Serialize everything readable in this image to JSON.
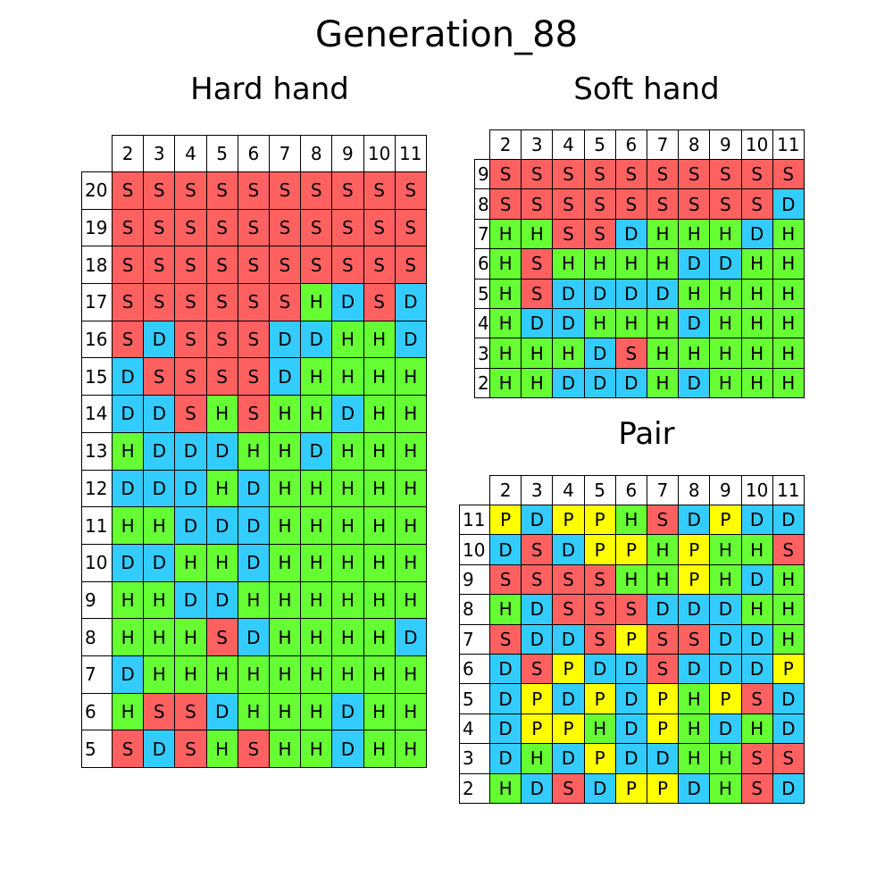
{
  "title": "Generation_88",
  "colors": {
    "S": "#ff6161",
    "H": "#66ff33",
    "D": "#33ccff",
    "P": "#ffff00"
  },
  "chart_data": [
    {
      "type": "table",
      "title": "Hard hand",
      "columns": [
        "2",
        "3",
        "4",
        "5",
        "6",
        "7",
        "8",
        "9",
        "10",
        "11"
      ],
      "rows": [
        {
          "label": "20",
          "cells": [
            "S",
            "S",
            "S",
            "S",
            "S",
            "S",
            "S",
            "S",
            "S",
            "S"
          ]
        },
        {
          "label": "19",
          "cells": [
            "S",
            "S",
            "S",
            "S",
            "S",
            "S",
            "S",
            "S",
            "S",
            "S"
          ]
        },
        {
          "label": "18",
          "cells": [
            "S",
            "S",
            "S",
            "S",
            "S",
            "S",
            "S",
            "S",
            "S",
            "S"
          ]
        },
        {
          "label": "17",
          "cells": [
            "S",
            "S",
            "S",
            "S",
            "S",
            "S",
            "H",
            "D",
            "S",
            "D"
          ]
        },
        {
          "label": "16",
          "cells": [
            "S",
            "D",
            "S",
            "S",
            "S",
            "D",
            "D",
            "H",
            "H",
            "D"
          ]
        },
        {
          "label": "15",
          "cells": [
            "D",
            "S",
            "S",
            "S",
            "S",
            "D",
            "H",
            "H",
            "H",
            "H"
          ]
        },
        {
          "label": "14",
          "cells": [
            "D",
            "D",
            "S",
            "H",
            "S",
            "H",
            "H",
            "D",
            "H",
            "H"
          ]
        },
        {
          "label": "13",
          "cells": [
            "H",
            "D",
            "D",
            "D",
            "H",
            "H",
            "D",
            "H",
            "H",
            "H"
          ]
        },
        {
          "label": "12",
          "cells": [
            "D",
            "D",
            "D",
            "H",
            "D",
            "H",
            "H",
            "H",
            "H",
            "H"
          ]
        },
        {
          "label": "11",
          "cells": [
            "H",
            "H",
            "D",
            "D",
            "D",
            "H",
            "H",
            "H",
            "H",
            "H"
          ]
        },
        {
          "label": "10",
          "cells": [
            "D",
            "D",
            "H",
            "H",
            "D",
            "H",
            "H",
            "H",
            "H",
            "H"
          ]
        },
        {
          "label": "9",
          "cells": [
            "H",
            "H",
            "D",
            "D",
            "H",
            "H",
            "H",
            "H",
            "H",
            "H"
          ]
        },
        {
          "label": "8",
          "cells": [
            "H",
            "H",
            "H",
            "S",
            "D",
            "H",
            "H",
            "H",
            "H",
            "D"
          ]
        },
        {
          "label": "7",
          "cells": [
            "D",
            "H",
            "H",
            "H",
            "H",
            "H",
            "H",
            "H",
            "H",
            "H"
          ]
        },
        {
          "label": "6",
          "cells": [
            "H",
            "S",
            "S",
            "D",
            "H",
            "H",
            "H",
            "D",
            "H",
            "H"
          ]
        },
        {
          "label": "5",
          "cells": [
            "S",
            "D",
            "S",
            "H",
            "S",
            "H",
            "H",
            "D",
            "H",
            "H"
          ]
        }
      ]
    },
    {
      "type": "table",
      "title": "Soft hand",
      "columns": [
        "2",
        "3",
        "4",
        "5",
        "6",
        "7",
        "8",
        "9",
        "10",
        "11"
      ],
      "rows": [
        {
          "label": "9",
          "cells": [
            "S",
            "S",
            "S",
            "S",
            "S",
            "S",
            "S",
            "S",
            "S",
            "S"
          ]
        },
        {
          "label": "8",
          "cells": [
            "S",
            "S",
            "S",
            "S",
            "S",
            "S",
            "S",
            "S",
            "S",
            "D"
          ]
        },
        {
          "label": "7",
          "cells": [
            "H",
            "H",
            "S",
            "S",
            "D",
            "H",
            "H",
            "H",
            "D",
            "H"
          ]
        },
        {
          "label": "6",
          "cells": [
            "H",
            "S",
            "H",
            "H",
            "H",
            "H",
            "D",
            "D",
            "H",
            "H"
          ]
        },
        {
          "label": "5",
          "cells": [
            "H",
            "S",
            "D",
            "D",
            "D",
            "D",
            "H",
            "H",
            "H",
            "H"
          ]
        },
        {
          "label": "4",
          "cells": [
            "H",
            "D",
            "D",
            "H",
            "H",
            "H",
            "D",
            "H",
            "H",
            "H"
          ]
        },
        {
          "label": "3",
          "cells": [
            "H",
            "H",
            "H",
            "D",
            "S",
            "H",
            "H",
            "H",
            "H",
            "H"
          ]
        },
        {
          "label": "2",
          "cells": [
            "H",
            "H",
            "D",
            "D",
            "D",
            "H",
            "D",
            "H",
            "H",
            "H"
          ]
        }
      ]
    },
    {
      "type": "table",
      "title": "Pair",
      "columns": [
        "2",
        "3",
        "4",
        "5",
        "6",
        "7",
        "8",
        "9",
        "10",
        "11"
      ],
      "rows": [
        {
          "label": "11",
          "cells": [
            "P",
            "D",
            "P",
            "P",
            "H",
            "S",
            "D",
            "P",
            "D",
            "D"
          ]
        },
        {
          "label": "10",
          "cells": [
            "D",
            "S",
            "D",
            "P",
            "P",
            "H",
            "P",
            "H",
            "H",
            "S"
          ]
        },
        {
          "label": "9",
          "cells": [
            "S",
            "S",
            "S",
            "S",
            "H",
            "H",
            "P",
            "H",
            "D",
            "H"
          ]
        },
        {
          "label": "8",
          "cells": [
            "H",
            "D",
            "S",
            "S",
            "S",
            "D",
            "D",
            "D",
            "H",
            "H"
          ]
        },
        {
          "label": "7",
          "cells": [
            "S",
            "D",
            "D",
            "S",
            "P",
            "S",
            "S",
            "D",
            "D",
            "H"
          ]
        },
        {
          "label": "6",
          "cells": [
            "D",
            "S",
            "P",
            "D",
            "D",
            "S",
            "D",
            "D",
            "D",
            "P"
          ]
        },
        {
          "label": "5",
          "cells": [
            "D",
            "P",
            "D",
            "P",
            "D",
            "P",
            "H",
            "P",
            "S",
            "D"
          ]
        },
        {
          "label": "4",
          "cells": [
            "D",
            "P",
            "P",
            "H",
            "D",
            "P",
            "H",
            "D",
            "H",
            "D"
          ]
        },
        {
          "label": "3",
          "cells": [
            "D",
            "H",
            "D",
            "P",
            "D",
            "D",
            "H",
            "H",
            "S",
            "S"
          ]
        },
        {
          "label": "2",
          "cells": [
            "H",
            "D",
            "S",
            "D",
            "P",
            "P",
            "D",
            "H",
            "S",
            "D"
          ]
        }
      ]
    }
  ]
}
